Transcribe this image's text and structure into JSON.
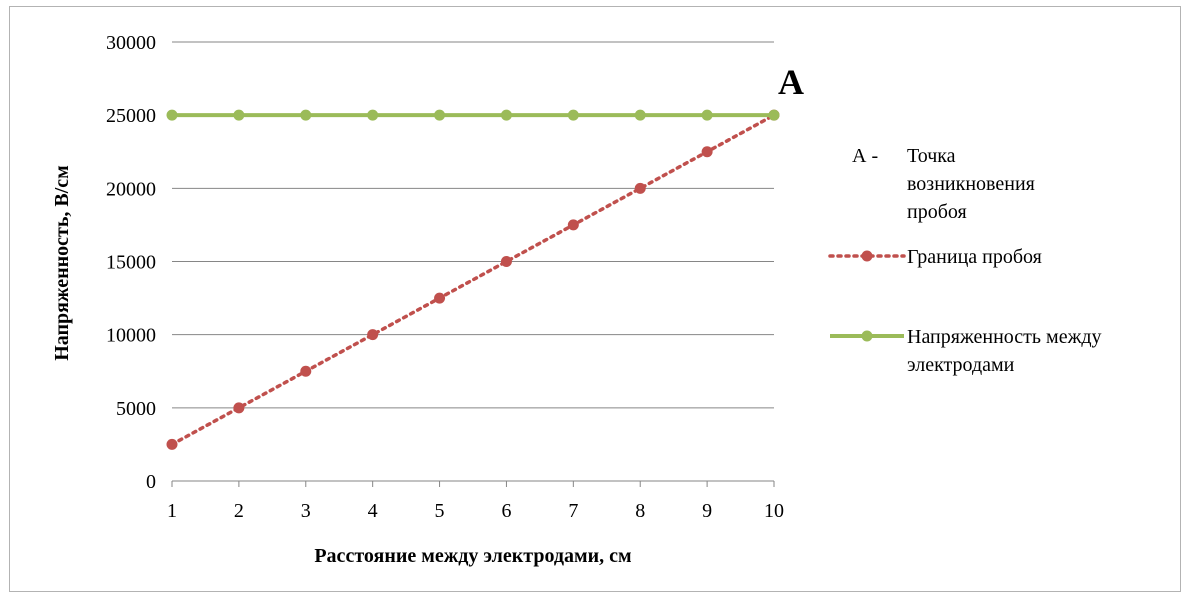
{
  "chart_data": {
    "type": "line",
    "xlabel": "Расстояние между электродами, см",
    "ylabel": "Напряженность, В/см",
    "x": [
      "1",
      "2",
      "3",
      "4",
      "5",
      "6",
      "7",
      "8",
      "9",
      "10"
    ],
    "ylim": [
      0,
      30000
    ],
    "yticks": [
      "0",
      "5000",
      "10000",
      "15000",
      "20000",
      "25000",
      "30000"
    ],
    "grid": true,
    "legend_position": "right",
    "series": [
      {
        "name": "Граница пробоя",
        "color": "#c0504d",
        "style": "dotted",
        "values": [
          2500,
          5000,
          7500,
          10000,
          12500,
          15000,
          17500,
          20000,
          22500,
          25000
        ]
      },
      {
        "name_lines": [
          "Напряженность между",
          "электродами"
        ],
        "color": "#9bbb59",
        "style": "solid",
        "values": [
          25000,
          25000,
          25000,
          25000,
          25000,
          25000,
          25000,
          25000,
          25000,
          25000
        ]
      }
    ],
    "annotation": {
      "label": "A",
      "x": "10",
      "y": 25000
    },
    "legend_note": {
      "key": "А -",
      "lines": [
        "Точка",
        "возникновения",
        "пробоя"
      ]
    }
  }
}
